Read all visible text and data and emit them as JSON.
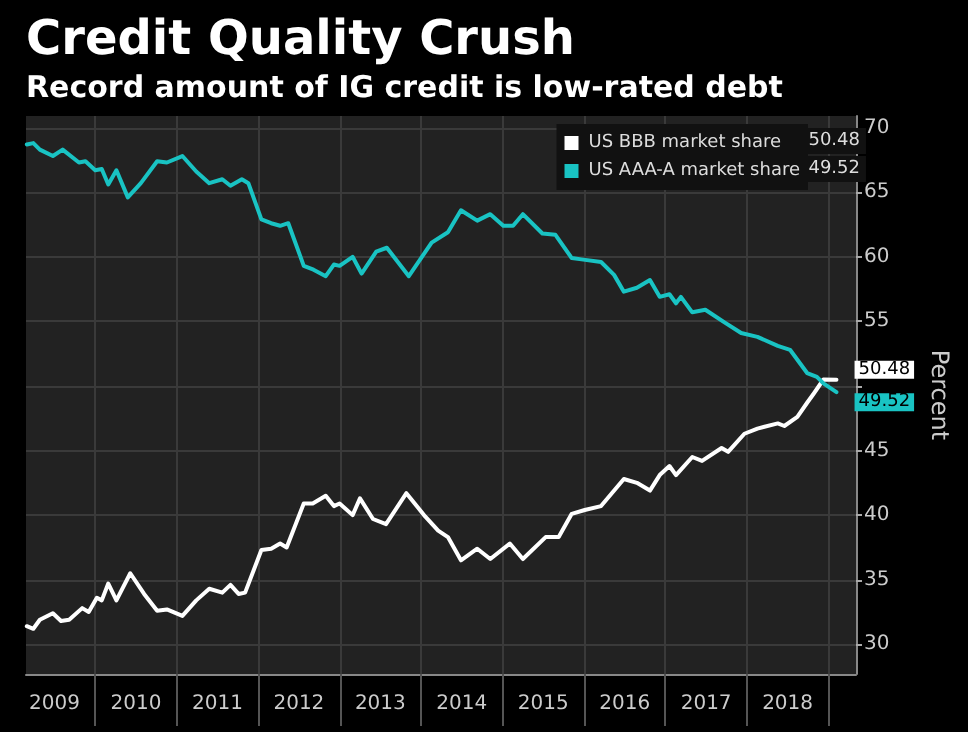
{
  "chart_data": {
    "type": "line",
    "title": "Credit Quality Crush",
    "subtitle": "Record amount of IG credit is low-rated debt",
    "ylabel": "Percent",
    "xlim": [
      2009.15,
      2019.34
    ],
    "ylim": [
      27.7,
      70.9
    ],
    "xticks": [
      {
        "value": 2009.5,
        "label": "2009"
      },
      {
        "value": 2010,
        "label": null
      },
      {
        "value": 2010.5,
        "label": "2010"
      },
      {
        "value": 2011,
        "label": null
      },
      {
        "value": 2011.5,
        "label": "2011"
      },
      {
        "value": 2012,
        "label": null
      },
      {
        "value": 2012.5,
        "label": "2012"
      },
      {
        "value": 2013,
        "label": null
      },
      {
        "value": 2013.5,
        "label": "2013"
      },
      {
        "value": 2014,
        "label": null
      },
      {
        "value": 2014.5,
        "label": "2014"
      },
      {
        "value": 2015,
        "label": null
      },
      {
        "value": 2015.5,
        "label": "2015"
      },
      {
        "value": 2016,
        "label": null
      },
      {
        "value": 2016.5,
        "label": "2016"
      },
      {
        "value": 2017,
        "label": null
      },
      {
        "value": 2017.5,
        "label": "2017"
      },
      {
        "value": 2018,
        "label": null
      },
      {
        "value": 2018.5,
        "label": "2018"
      },
      {
        "value": 2019,
        "label": null
      }
    ],
    "yticks": [
      30,
      35,
      40,
      45,
      {
        "value": 50,
        "label": null
      },
      55,
      60,
      65,
      70
    ],
    "grid": true,
    "legend": "top right",
    "marker": "none",
    "line_style": "solid",
    "series": [
      {
        "name": "US BBB market share",
        "color": "#ffffff",
        "x": [
          2009.16,
          2009.24,
          2009.32,
          2009.48,
          2009.58,
          2009.68,
          2009.84,
          2009.92,
          2010.02,
          2010.08,
          2010.16,
          2010.26,
          2010.43,
          2010.6,
          2010.76,
          2010.88,
          2011.07,
          2011.24,
          2011.4,
          2011.56,
          2011.66,
          2011.76,
          2011.84,
          2012.04,
          2012.16,
          2012.27,
          2012.35,
          2012.56,
          2012.67,
          2012.83,
          2012.93,
          2013.0,
          2013.16,
          2013.25,
          2013.41,
          2013.57,
          2013.82,
          2014.05,
          2014.21,
          2014.33,
          2014.49,
          2014.69,
          2014.85,
          2015.09,
          2015.25,
          2015.53,
          2015.69,
          2015.85,
          2016.01,
          2016.21,
          2016.49,
          2016.65,
          2016.81,
          2016.93,
          2017.05,
          2017.13,
          2017.33,
          2017.45,
          2017.69,
          2017.77,
          2017.97,
          2018.13,
          2018.38,
          2018.46,
          2018.62,
          2018.74,
          2018.82,
          2018.94,
          2019.1
        ],
        "values": [
          31.4,
          31.2,
          31.9,
          32.4,
          31.8,
          31.9,
          32.8,
          32.5,
          33.6,
          33.4,
          34.7,
          33.4,
          35.5,
          33.9,
          32.6,
          32.7,
          32.2,
          33.4,
          34.3,
          34.0,
          34.6,
          33.9,
          34.0,
          37.3,
          37.4,
          37.8,
          37.5,
          40.9,
          40.9,
          41.5,
          40.7,
          40.9,
          40.0,
          41.3,
          39.7,
          39.3,
          41.7,
          39.9,
          38.8,
          38.3,
          36.5,
          37.4,
          36.6,
          37.8,
          36.6,
          38.3,
          38.3,
          40.1,
          40.4,
          40.7,
          42.8,
          42.5,
          41.9,
          43.1,
          43.8,
          43.1,
          44.5,
          44.2,
          45.2,
          44.9,
          46.3,
          46.7,
          47.1,
          46.9,
          47.6,
          48.7,
          49.4,
          50.5,
          50.48
        ],
        "value_labels": [
          null,
          null,
          null,
          null,
          null,
          null,
          null,
          null,
          null,
          null,
          null,
          null,
          null,
          null,
          null,
          null,
          null,
          null,
          null,
          null,
          null,
          null,
          null,
          null,
          null,
          null,
          null,
          null,
          null,
          null,
          null,
          null,
          null,
          null,
          null,
          null,
          null,
          null,
          null,
          null,
          null,
          null,
          null,
          null,
          null,
          null,
          null,
          null,
          null,
          null,
          null,
          null,
          null,
          null,
          null,
          null,
          null,
          null,
          null,
          null,
          null,
          null,
          null,
          null,
          null,
          null,
          null,
          null,
          "50.48"
        ]
      },
      {
        "name": "US AAA-A market share",
        "color": "#19c3c3",
        "x": [
          2009.16,
          2009.24,
          2009.32,
          2009.48,
          2009.6,
          2009.8,
          2009.88,
          2010.0,
          2010.08,
          2010.16,
          2010.26,
          2010.4,
          2010.56,
          2010.76,
          2010.88,
          2011.07,
          2011.24,
          2011.4,
          2011.56,
          2011.66,
          2011.8,
          2011.88,
          2012.04,
          2012.16,
          2012.27,
          2012.37,
          2012.56,
          2012.68,
          2012.83,
          2012.93,
          2013.0,
          2013.16,
          2013.27,
          2013.45,
          2013.58,
          2013.85,
          2014.13,
          2014.33,
          2014.49,
          2014.69,
          2014.85,
          2015.01,
          2015.13,
          2015.25,
          2015.49,
          2015.65,
          2015.85,
          2015.97,
          2016.21,
          2016.37,
          2016.49,
          2016.65,
          2016.81,
          2016.93,
          2017.05,
          2017.13,
          2017.19,
          2017.33,
          2017.49,
          2017.73,
          2017.93,
          2018.13,
          2018.38,
          2018.53,
          2018.74,
          2018.86,
          2018.94,
          2019.1
        ],
        "values": [
          68.7,
          68.8,
          68.3,
          67.8,
          68.3,
          67.3,
          67.4,
          66.7,
          66.8,
          65.6,
          66.7,
          64.6,
          65.7,
          67.4,
          67.3,
          67.8,
          66.6,
          65.7,
          66.0,
          65.5,
          66.0,
          65.7,
          62.9,
          62.6,
          62.4,
          62.6,
          59.3,
          59.0,
          58.5,
          59.4,
          59.3,
          60.0,
          58.7,
          60.4,
          60.7,
          58.5,
          61.1,
          61.9,
          63.6,
          62.8,
          63.3,
          62.4,
          62.4,
          63.3,
          61.8,
          61.7,
          59.9,
          59.8,
          59.6,
          58.6,
          57.3,
          57.6,
          58.2,
          56.9,
          57.1,
          56.4,
          56.9,
          55.7,
          55.9,
          54.9,
          54.1,
          53.8,
          53.1,
          52.8,
          51.0,
          50.7,
          50.2,
          49.52
        ],
        "value_labels": [
          null,
          null,
          null,
          null,
          null,
          null,
          null,
          null,
          null,
          null,
          null,
          null,
          null,
          null,
          null,
          null,
          null,
          null,
          null,
          null,
          null,
          null,
          null,
          null,
          null,
          null,
          null,
          null,
          null,
          null,
          null,
          null,
          null,
          null,
          null,
          null,
          null,
          null,
          null,
          null,
          null,
          null,
          null,
          null,
          null,
          null,
          null,
          null,
          null,
          null,
          null,
          null,
          null,
          null,
          null,
          null,
          null,
          null,
          null,
          null,
          null,
          null,
          null,
          null,
          null,
          null,
          null,
          "49.52"
        ]
      }
    ]
  }
}
